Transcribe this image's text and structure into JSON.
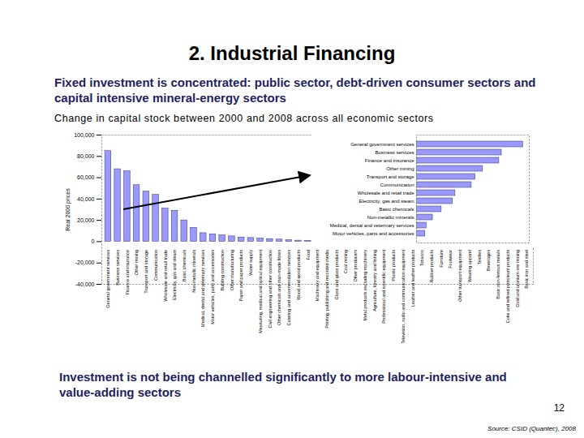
{
  "slide": {
    "heading": "2. Industrial Financing",
    "lead": "Fixed investment is concentrated: public sector, debt-driven consumer sectors and capital intensive mineral-energy sectors",
    "caption": "Change in capital stock between 2000 and 2008 across all economic sectors",
    "conclusion": "Investment is not being channelled significantly to more labour-intensive and value-adding sectors",
    "page_number": 12,
    "source": "Source: CSID (Quantec), 2008"
  },
  "chart_data": [
    {
      "type": "bar",
      "y_label": "Real 2000 prices",
      "categories": [
        "General government services",
        "Business services",
        "Finance and insurance",
        "Other mining",
        "Transport and storage",
        "Communication",
        "Wholesale and retail trade",
        "Electricity, gas and steam",
        "Basic chemicals",
        "Non-metallic minerals",
        "Medical, dental and veterinary services",
        "Motor vehicles, parts and accessories",
        "Building construction",
        "Other manufacturing",
        "Paper and paper products",
        "Water supply",
        "Measuring, medical and optical equipment",
        "Civil engineering and other construction",
        "Other chemicals and man-made fibres",
        "Catering and accommodation services",
        "Wood and wood products",
        "Food",
        "Machinery and equipment",
        "Printing, publishing and recorded media",
        "Glass and glass products",
        "Coal mining",
        "Other producers",
        "Metal products excluding machinery",
        "Agriculture, forestry and fishing",
        "Professional and scientific equipment",
        "Plastic products",
        "Television, radio and communication equipment",
        "Leather and leather products",
        "Tobacco",
        "Rubber products",
        "Furniture",
        "Footwear",
        "Other transport equipment",
        "Wearing apparel",
        "Textiles",
        "Beverages",
        "Basic non-ferrous metals",
        "Coke and refined petroleum products",
        "Gold and uranium ore mining",
        "Basic iron and steel"
      ],
      "values": [
        85000,
        68000,
        66000,
        53000,
        47000,
        44000,
        31000,
        29000,
        20000,
        13000,
        8000,
        7000,
        6000,
        5000,
        4000,
        3500,
        3000,
        2500,
        2000,
        1500,
        1000,
        800,
        500,
        400,
        200,
        100,
        -300,
        -400,
        -500,
        -700,
        -900,
        -1000,
        -1200,
        -1300,
        -1500,
        -1700,
        -1900,
        -2100,
        -2300,
        -2600,
        -2900,
        -3200,
        -3600,
        -4000,
        -4500
      ],
      "color": "#9999ff",
      "ylim": [
        -40000,
        100000
      ],
      "yticks": [
        {
          "value": -40000,
          "label": "-40,000"
        },
        {
          "value": -20000,
          "label": "-20,000"
        },
        0,
        {
          "value": 20000,
          "label": "20,000"
        },
        {
          "value": 40000,
          "label": "40,000"
        },
        {
          "value": 60000,
          "label": "60,000"
        },
        {
          "value": 80000,
          "label": "80,000"
        },
        {
          "value": 100000,
          "label": "100,000"
        }
      ],
      "grid": false
    },
    {
      "type": "bar",
      "orientation": "horizontal",
      "categories": [
        "General government services",
        "Business services",
        "Finance and insurance",
        "Other mining",
        "Transport and storage",
        "Communication",
        "Wholesale and retail trade",
        "Electricity, gas and steam",
        "Basic chemicals",
        "Non-metallic minerals",
        "Medical, dental and veterinary services",
        "Motor vehicles, parts and accessories"
      ],
      "values": [
        85000,
        68000,
        66000,
        53000,
        47000,
        44000,
        31000,
        29000,
        20000,
        13000,
        8000,
        7000
      ],
      "color": "#9999ff",
      "xlim": [
        0,
        90000
      ],
      "tick_labels": "y",
      "grid": false
    }
  ]
}
